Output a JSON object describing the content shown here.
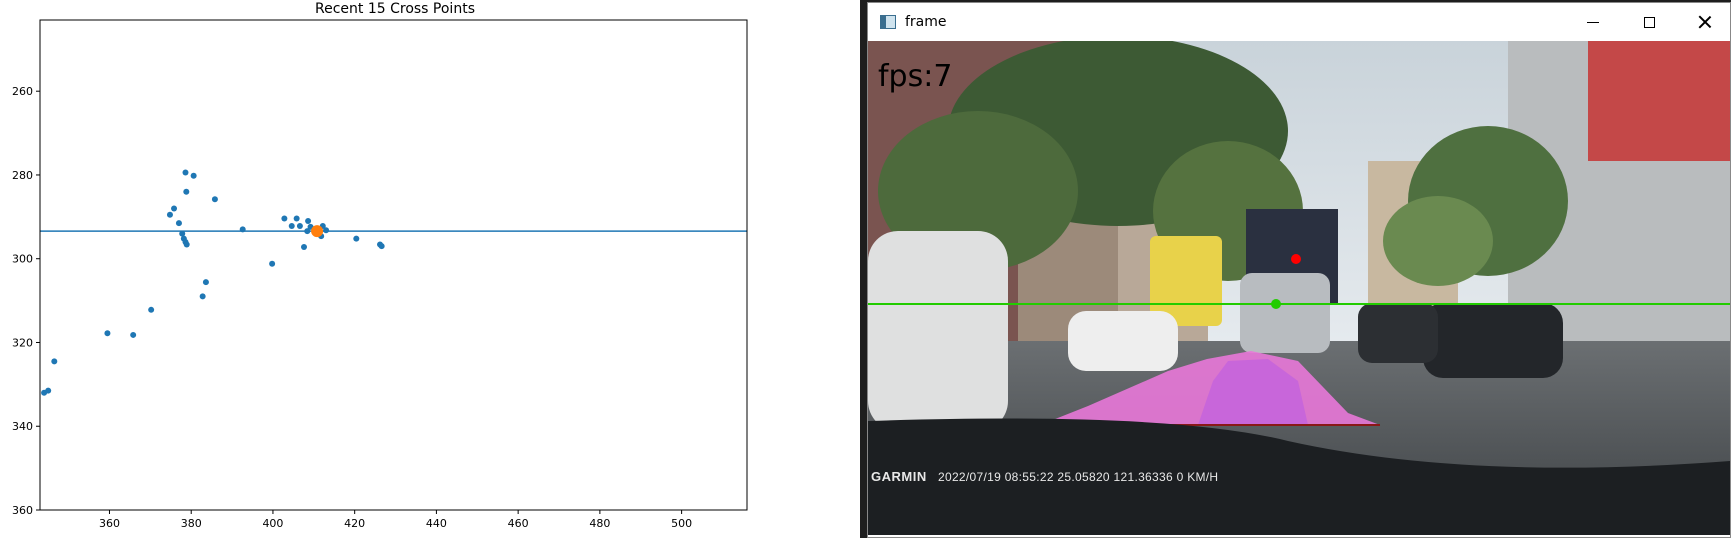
{
  "chart_data": {
    "type": "scatter",
    "title": "Recent 15 Cross Points",
    "xlabel": "",
    "ylabel": "",
    "xlim": [
      343,
      516
    ],
    "ylim": [
      360,
      243
    ],
    "y_inverted": true,
    "xticks": [
      360,
      380,
      400,
      420,
      440,
      460,
      480,
      500
    ],
    "yticks": [
      260,
      280,
      300,
      320,
      340,
      360
    ],
    "grid": false,
    "series": [
      {
        "color": "#1f77b4",
        "points": [
          [
            344,
            332
          ],
          [
            345,
            331.5
          ],
          [
            346.5,
            324.5
          ],
          [
            359.5,
            317.8
          ],
          [
            365.8,
            318.2
          ],
          [
            370.2,
            312.2
          ],
          [
            378.6,
            279.4
          ],
          [
            380.6,
            280.2
          ],
          [
            378.8,
            284
          ],
          [
            385.8,
            285.8
          ],
          [
            375.8,
            288
          ],
          [
            374.8,
            289.5
          ],
          [
            377,
            291.5
          ],
          [
            377.8,
            294
          ],
          [
            378.2,
            295.2
          ],
          [
            378.6,
            296
          ],
          [
            378.9,
            296.6
          ],
          [
            392.6,
            293
          ],
          [
            399.8,
            301.2
          ],
          [
            383.6,
            305.6
          ],
          [
            382.8,
            309
          ],
          [
            402.8,
            290.4
          ],
          [
            405.8,
            290.4
          ],
          [
            404.6,
            292.2
          ],
          [
            406.6,
            292.2
          ],
          [
            408.6,
            291
          ],
          [
            409.2,
            292.4
          ],
          [
            408.4,
            293.4
          ],
          [
            410.4,
            293.8
          ],
          [
            412.2,
            292.2
          ],
          [
            413,
            293.2
          ],
          [
            411.8,
            294.6
          ],
          [
            407.6,
            297.2
          ],
          [
            420.4,
            295.2
          ],
          [
            426.2,
            296.6
          ],
          [
            426.6,
            297
          ]
        ]
      },
      {
        "color": "#ff7f0e",
        "points": [
          [
            410.8,
            293.4
          ]
        ]
      }
    ],
    "hline": {
      "y": 293.4,
      "color": "#1f77b4"
    }
  },
  "window": {
    "title": "frame",
    "minimize_icon": "window-minimize-icon",
    "maximize_icon": "window-maximize-icon",
    "close_icon": "window-close-icon"
  },
  "video": {
    "fps_text": "fps:7",
    "brand": "GARMIN",
    "info": "2022/07/19 08:55:22  25.05820 121.36336  0 KM/H",
    "horizon_line_color": "#22cc00",
    "vanishing_point_color": "#ff0000"
  }
}
